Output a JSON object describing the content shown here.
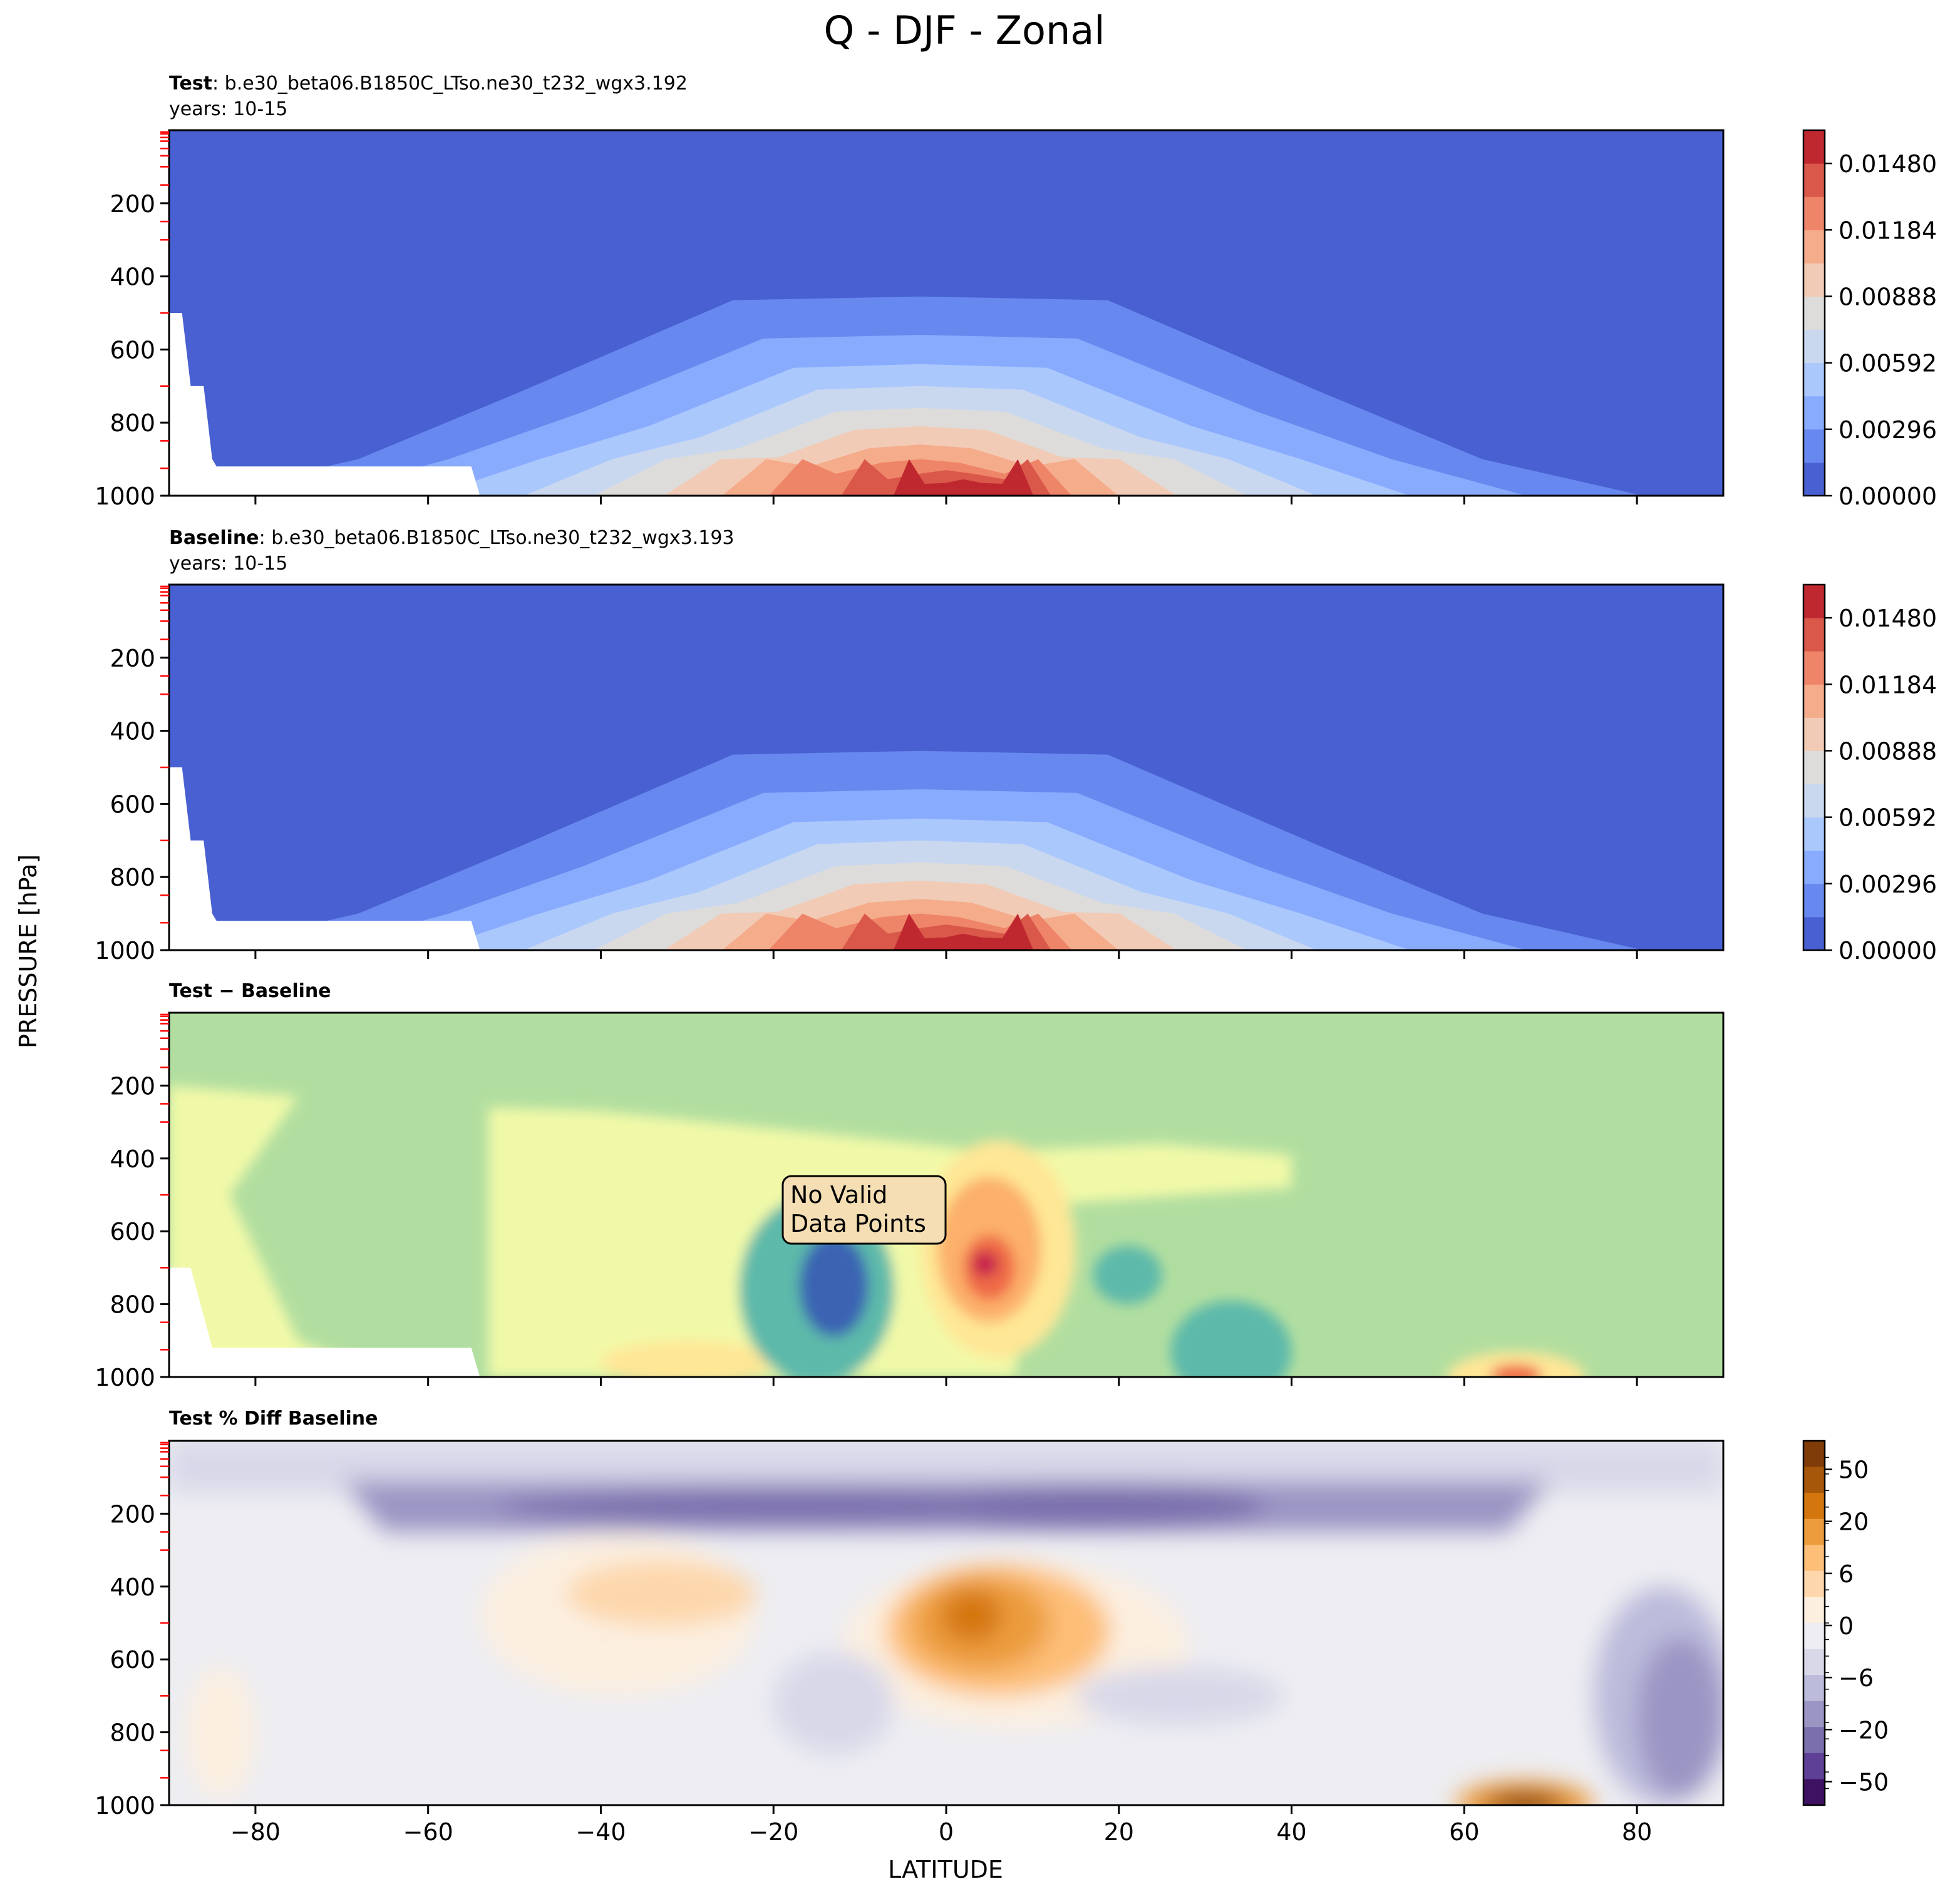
{
  "figure": {
    "title": "Q - DJF - Zonal",
    "shared_xlabel": "LATITUDE",
    "shared_ylabel": "PRESSURE [hPa]"
  },
  "colors": {
    "cool_warm": [
      "#4860d1",
      "#6788ee",
      "#88abfd",
      "#abc8fd",
      "#c9d8ef",
      "#dddcdb",
      "#f2cbb7",
      "#f5ac8b",
      "#ee8468",
      "#d9584a",
      "#c0282f"
    ],
    "diff_spectral": [
      "#3b63b2",
      "#5db9aa",
      "#b1dea0",
      "#f1f9a8",
      "#fee796",
      "#fcb06a",
      "#ef6a47",
      "#c51f4d"
    ],
    "pct_diff": [
      "#3f1162",
      "#5e4196",
      "#7b6fad",
      "#9b95c4",
      "#bcbbdb",
      "#d8d8e9",
      "#ededf2",
      "#fcefe0",
      "#fdd7ab",
      "#fdbe77",
      "#ec9c3c",
      "#d4760e",
      "#a75709",
      "#7f3b08"
    ],
    "missing": "#ffffff",
    "tick_red": "#ff0000"
  },
  "chart_data": [
    {
      "type": "contour",
      "panel": "test",
      "label_bold": "Test",
      "label_rest": ": b.e30_beta06.B1850C_LTso.ne30_t232_wgx3.192",
      "subtitle": "years: 10-15",
      "xlim": [
        -90,
        90
      ],
      "ylim": [
        1000,
        0
      ],
      "x_ticks": [
        -80,
        -60,
        -40,
        -20,
        0,
        20,
        40,
        60,
        80
      ],
      "y_ticks": [
        200,
        400,
        600,
        800,
        1000
      ],
      "colorbar": {
        "tick_labels": [
          "0.00000",
          "0.00296",
          "0.00592",
          "0.00888",
          "0.01184",
          "0.01480"
        ],
        "levels": [
          0,
          0.00148,
          0.00296,
          0.00444,
          0.00592,
          0.0074,
          0.00888,
          0.01036,
          0.01184,
          0.01332,
          0.0148,
          0.01628
        ]
      },
      "field": "humidity",
      "peak_max": 0.0155,
      "missing_region": "terrain below surface near Antarctica (-90 to -54 lat, near 1000 hPa)"
    },
    {
      "type": "contour",
      "panel": "baseline",
      "label_bold": "Baseline",
      "label_rest": ": b.e30_beta06.B1850C_LTso.ne30_t232_wgx3.193",
      "subtitle": "years: 10-15",
      "xlim": [
        -90,
        90
      ],
      "ylim": [
        1000,
        0
      ],
      "x_ticks": [
        -80,
        -60,
        -40,
        -20,
        0,
        20,
        40,
        60,
        80
      ],
      "y_ticks": [
        200,
        400,
        600,
        800,
        1000
      ],
      "colorbar": {
        "tick_labels": [
          "0.00000",
          "0.00296",
          "0.00592",
          "0.00888",
          "0.01184",
          "0.01480"
        ],
        "levels": [
          0,
          0.00148,
          0.00296,
          0.00444,
          0.00592,
          0.0074,
          0.00888,
          0.01036,
          0.01184,
          0.01332,
          0.0148,
          0.01628
        ]
      },
      "field": "humidity",
      "peak_max": 0.0155
    },
    {
      "type": "contour",
      "panel": "difference",
      "label_bold": "Test − Baseline",
      "xlim": [
        -90,
        90
      ],
      "ylim": [
        1000,
        0
      ],
      "x_ticks": [
        -80,
        -60,
        -40,
        -20,
        0,
        20,
        40,
        60,
        80
      ],
      "y_ticks": [
        200,
        400,
        600,
        800,
        1000
      ],
      "annotation": "No Valid\nData Points",
      "annotation_lines": [
        "No Valid",
        "Data Points"
      ],
      "features": [
        {
          "kind": "positive_max",
          "lat": 5,
          "plev": 700
        },
        {
          "kind": "negative_min",
          "lat": -14,
          "plev": 760
        },
        {
          "kind": "positive_local",
          "lat": 66,
          "plev": 990
        }
      ]
    },
    {
      "type": "contour",
      "panel": "percent_difference",
      "label_bold": "Test % Diff Baseline",
      "xlim": [
        -90,
        90
      ],
      "ylim": [
        1000,
        0
      ],
      "x_ticks": [
        -80,
        -60,
        -40,
        -20,
        0,
        20,
        40,
        60,
        80
      ],
      "x_tick_labels": [
        "−80",
        "−60",
        "−40",
        "−20",
        "0",
        "20",
        "40",
        "60",
        "80"
      ],
      "y_ticks": [
        200,
        400,
        600,
        800,
        1000
      ],
      "xlabel": "LATITUDE",
      "colorbar": {
        "tick_labels": [
          "50",
          "20",
          "6",
          "0",
          "−6",
          "−20",
          "−50"
        ],
        "levels": [
          -100,
          -50,
          -40,
          -30,
          -20,
          -15,
          -10,
          -8,
          -6,
          -4,
          -2,
          0,
          2,
          4,
          6,
          8,
          10,
          15,
          20,
          30,
          40,
          50,
          100
        ]
      },
      "features": [
        {
          "kind": "positive_max",
          "lat": 3,
          "plev": 480,
          "value": 25
        },
        {
          "kind": "positive_max",
          "lat": 67,
          "plev": 990,
          "value": 60
        },
        {
          "kind": "negative_band",
          "plev": 180,
          "value": -20
        },
        {
          "kind": "negative_region",
          "lat": 83,
          "plev": 750,
          "value": -20
        }
      ]
    }
  ]
}
